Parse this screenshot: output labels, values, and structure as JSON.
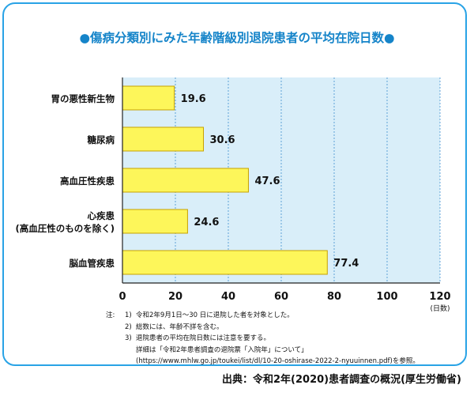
{
  "title": "●傷病分類別にみた年齢階級別退院患者の平均在院日数●",
  "chart_data": {
    "type": "bar",
    "orientation": "horizontal",
    "categories": [
      [
        "胃の悪性新生物"
      ],
      [
        "糖尿病"
      ],
      [
        "高血圧性疾患"
      ],
      [
        "心疾患",
        "(高血圧性のものを除く)"
      ],
      [
        "脳血管疾患"
      ]
    ],
    "values": [
      19.6,
      30.6,
      47.6,
      24.6,
      77.4
    ],
    "value_labels": [
      "19.6",
      "30.6",
      "47.6",
      "24.6",
      "77.4"
    ],
    "xlim": [
      0,
      120
    ],
    "x_ticks": [
      0,
      20,
      40,
      60,
      80,
      100,
      120
    ],
    "x_unit": "(日数)",
    "grid": true,
    "colors": {
      "bar": "#fdf65a",
      "bar_border": "#c8a200",
      "plot_bg": "#d9eef9",
      "grid": "#3f8fcf",
      "frame": "#29a3e6"
    }
  },
  "notes": {
    "lead": "注:",
    "items": [
      {
        "num": "1)",
        "text": "令和2年9月1日〜30 日に退院した者を対象とした。"
      },
      {
        "num": "2)",
        "text": "総数には、年齢不詳を含む。"
      },
      {
        "num": "3)",
        "text": "退院患者の平均在院日数には注意を要する。"
      },
      {
        "num": "",
        "text": "詳細は「令和2年患者調査の退院票「入院年」について」"
      },
      {
        "num": "",
        "text": "(https://www.mhlw.go.jp/toukei/list/dl/10-20-oshirase-2022-2-nyuuinnen.pdf)を参照。"
      }
    ]
  },
  "source": "出典：令和2年(2020)患者調査の概況(厚生労働省)"
}
